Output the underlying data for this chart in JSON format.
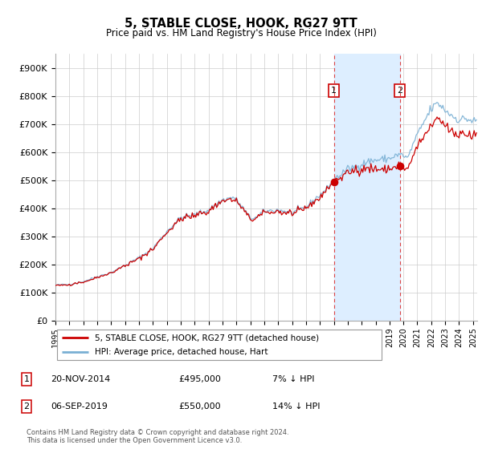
{
  "title": "5, STABLE CLOSE, HOOK, RG27 9TT",
  "subtitle": "Price paid vs. HM Land Registry's House Price Index (HPI)",
  "ylabel_ticks": [
    "£0",
    "£100K",
    "£200K",
    "£300K",
    "£400K",
    "£500K",
    "£600K",
    "£700K",
    "£800K",
    "£900K"
  ],
  "ytick_values": [
    0,
    100000,
    200000,
    300000,
    400000,
    500000,
    600000,
    700000,
    800000,
    900000
  ],
  "ylim": [
    0,
    950000
  ],
  "xlim_start": 1995.0,
  "xlim_end": 2025.3,
  "legend_line1": "5, STABLE CLOSE, HOOK, RG27 9TT (detached house)",
  "legend_line2": "HPI: Average price, detached house, Hart",
  "marker1_label": "1",
  "marker1_date": "20-NOV-2014",
  "marker1_price": "£495,000",
  "marker1_hpi": "7% ↓ HPI",
  "marker1_x": 2015.0,
  "marker2_label": "2",
  "marker2_date": "06-SEP-2019",
  "marker2_price": "£550,000",
  "marker2_hpi": "14% ↓ HPI",
  "marker2_x": 2019.75,
  "line_color_red": "#cc0000",
  "line_color_blue": "#7ab0d4",
  "shade_color": "#ddeeff",
  "vline_color": "#dd4444",
  "footer": "Contains HM Land Registry data © Crown copyright and database right 2024.\nThis data is licensed under the Open Government Licence v3.0."
}
